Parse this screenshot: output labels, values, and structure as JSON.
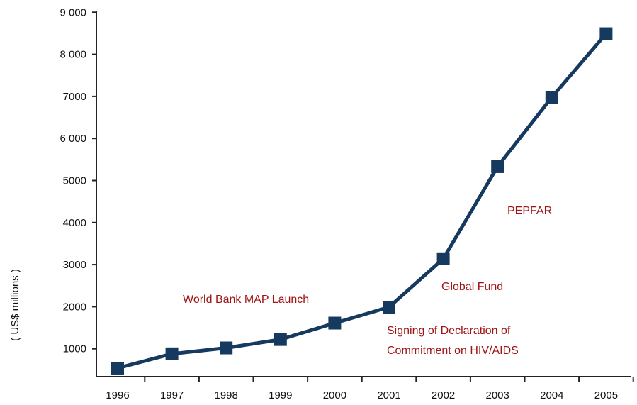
{
  "chart_data": {
    "type": "line",
    "title": "",
    "xlabel": "",
    "ylabel": "( US$ millions )",
    "x": [
      "1996",
      "1997",
      "1998",
      "1999",
      "2000",
      "2001",
      "2002",
      "2003",
      "2004",
      "2005"
    ],
    "series": [
      {
        "values": [
          540,
          880,
          1020,
          1220,
          1610,
          1990,
          3140,
          5330,
          6980,
          8490
        ],
        "color": "#163a5f"
      }
    ],
    "ylim": [
      0,
      9000
    ],
    "yticks": [
      1000,
      2000,
      3000,
      4000,
      5000,
      6000,
      7000,
      8000,
      9000
    ],
    "ytick_labels": [
      "1000",
      "2000",
      "3000",
      "4000",
      "5000",
      "6 000",
      "7000",
      "8 000",
      "9 000"
    ],
    "grid": false,
    "annotations": [
      {
        "text": "World Bank MAP Launch",
        "color": "#a01414"
      },
      {
        "text": "Signing of Declaration of",
        "color": "#a01414"
      },
      {
        "text": "Commitment on HIV/AIDS",
        "color": "#a01414"
      },
      {
        "text": "Global Fund",
        "color": "#a01414"
      },
      {
        "text": "PEPFAR",
        "color": "#a01414"
      }
    ]
  }
}
